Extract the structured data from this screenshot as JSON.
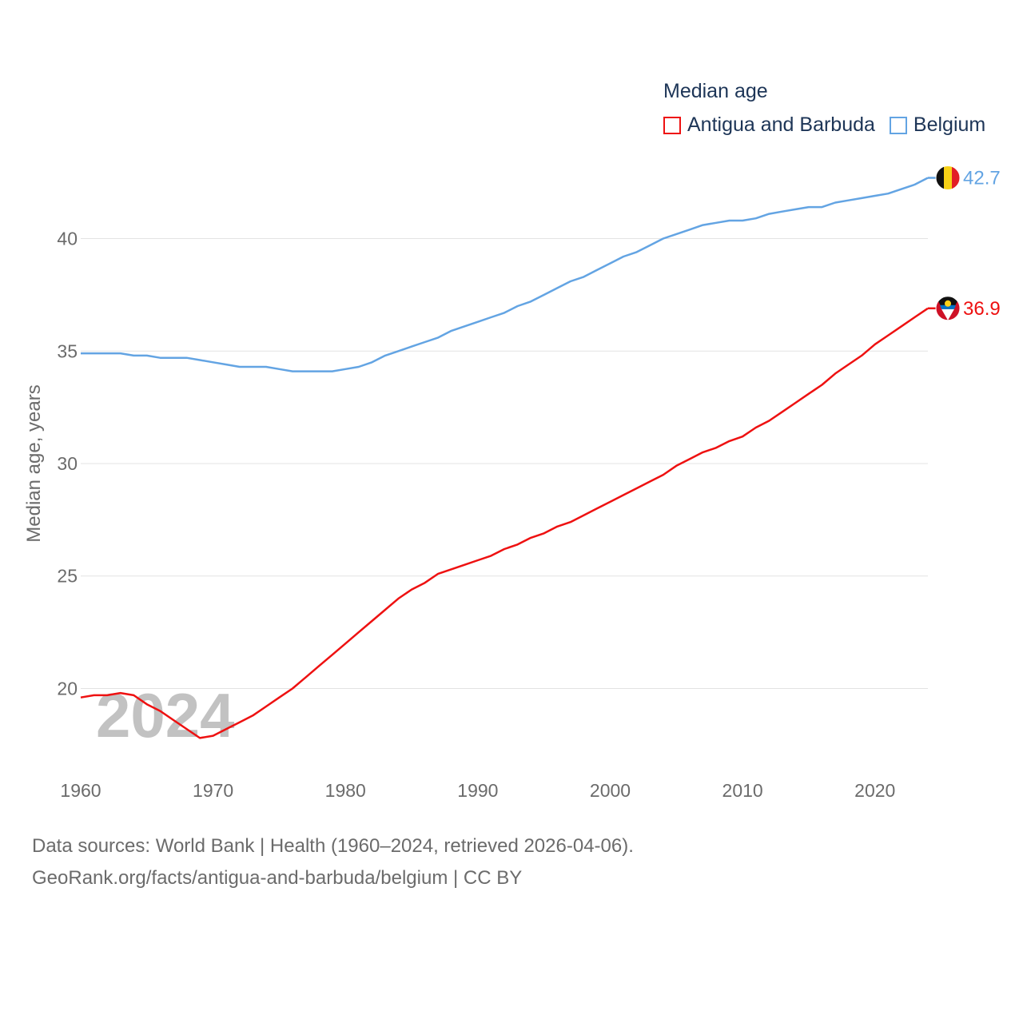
{
  "legend": {
    "title": "Median age",
    "items": [
      {
        "label": "Antigua and Barbuda",
        "color": "#ee1111"
      },
      {
        "label": "Belgium",
        "color": "#63a4e3"
      }
    ]
  },
  "year_watermark": "2024",
  "source": {
    "line1": "Data sources: World Bank | Health (1960–2024, retrieved 2026-04-06).",
    "line2": "GeoRank.org/facts/antigua-and-barbuda/belgium | CC BY"
  },
  "chart_data": {
    "type": "line",
    "title": "Median age",
    "xlabel": "",
    "ylabel": "Median age, years",
    "xlim": [
      1960,
      2024
    ],
    "ylim": [
      16.5,
      43.5
    ],
    "x_ticks": [
      1960,
      1970,
      1980,
      1990,
      2000,
      2010,
      2020
    ],
    "x_tick_labels": [
      "1960",
      "1970",
      "1980",
      "1990",
      "2000",
      "2010",
      "2020"
    ],
    "y_ticks": [
      20,
      25,
      30,
      35,
      40
    ],
    "y_tick_labels": [
      "20",
      "25",
      "30",
      "35",
      "40"
    ],
    "grid": true,
    "x": [
      1960,
      1961,
      1962,
      1963,
      1964,
      1965,
      1966,
      1967,
      1968,
      1969,
      1970,
      1971,
      1972,
      1973,
      1974,
      1975,
      1976,
      1977,
      1978,
      1979,
      1980,
      1981,
      1982,
      1983,
      1984,
      1985,
      1986,
      1987,
      1988,
      1989,
      1990,
      1991,
      1992,
      1993,
      1994,
      1995,
      1996,
      1997,
      1998,
      1999,
      2000,
      2001,
      2002,
      2003,
      2004,
      2005,
      2006,
      2007,
      2008,
      2009,
      2010,
      2011,
      2012,
      2013,
      2014,
      2015,
      2016,
      2017,
      2018,
      2019,
      2020,
      2021,
      2022,
      2023,
      2024
    ],
    "series": [
      {
        "name": "Antigua and Barbuda",
        "color": "#ee1111",
        "end_label": "36.9",
        "flag": "antigua-and-barbuda-flag",
        "values": [
          19.6,
          19.7,
          19.7,
          19.8,
          19.7,
          19.3,
          19.0,
          18.6,
          18.2,
          17.8,
          17.9,
          18.2,
          18.5,
          18.8,
          19.2,
          19.6,
          20.0,
          20.5,
          21.0,
          21.5,
          22.0,
          22.5,
          23.0,
          23.5,
          24.0,
          24.4,
          24.7,
          25.1,
          25.3,
          25.5,
          25.7,
          25.9,
          26.2,
          26.4,
          26.7,
          26.9,
          27.2,
          27.4,
          27.7,
          28.0,
          28.3,
          28.6,
          28.9,
          29.2,
          29.5,
          29.9,
          30.2,
          30.5,
          30.7,
          31.0,
          31.2,
          31.6,
          31.9,
          32.3,
          32.7,
          33.1,
          33.5,
          34.0,
          34.4,
          34.8,
          35.3,
          35.7,
          36.1,
          36.5,
          36.9
        ]
      },
      {
        "name": "Belgium",
        "color": "#63a4e3",
        "end_label": "42.7",
        "flag": "belgium-flag",
        "values": [
          34.9,
          34.9,
          34.9,
          34.9,
          34.8,
          34.8,
          34.7,
          34.7,
          34.7,
          34.6,
          34.5,
          34.4,
          34.3,
          34.3,
          34.3,
          34.2,
          34.1,
          34.1,
          34.1,
          34.1,
          34.2,
          34.3,
          34.5,
          34.8,
          35.0,
          35.2,
          35.4,
          35.6,
          35.9,
          36.1,
          36.3,
          36.5,
          36.7,
          37.0,
          37.2,
          37.5,
          37.8,
          38.1,
          38.3,
          38.6,
          38.9,
          39.2,
          39.4,
          39.7,
          40.0,
          40.2,
          40.4,
          40.6,
          40.7,
          40.8,
          40.8,
          40.9,
          41.1,
          41.2,
          41.3,
          41.4,
          41.4,
          41.6,
          41.7,
          41.8,
          41.9,
          42.0,
          42.2,
          42.4,
          42.7
        ]
      }
    ]
  }
}
